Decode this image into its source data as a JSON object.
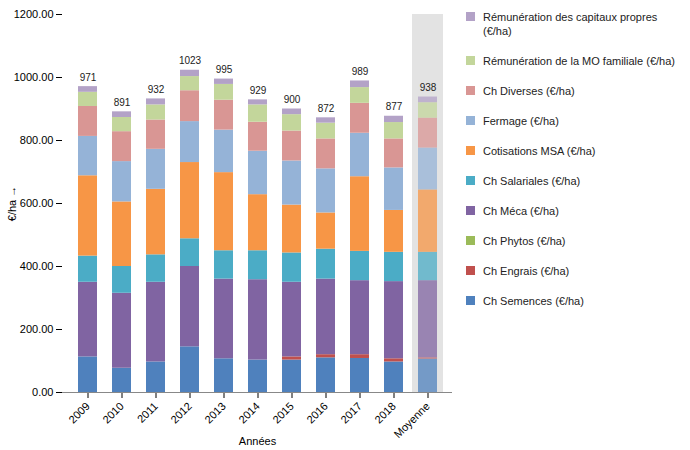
{
  "chart_data": {
    "type": "bar",
    "stacked": true,
    "x_label": "Années",
    "y_label": "€/ha",
    "legend": "right",
    "grid": false,
    "categories": [
      "2009",
      "2010",
      "2011",
      "2012",
      "2013",
      "2014",
      "2015",
      "2016",
      "2017",
      "2018",
      "Moyenne"
    ],
    "ylim": [
      0,
      1200
    ],
    "yticks": [
      {
        "value": 0,
        "label": "0.00"
      },
      {
        "value": 200,
        "label": "200.00"
      },
      {
        "value": 400,
        "label": "400.00"
      },
      {
        "value": 600,
        "label": "600.00"
      },
      {
        "value": 800,
        "label": "800.00"
      },
      {
        "value": 1000,
        "label": "1000.00"
      },
      {
        "value": 1200,
        "label": "1200.00"
      }
    ],
    "totals": [
      971,
      891,
      932,
      1023,
      995,
      929,
      900,
      872,
      989,
      877,
      938
    ],
    "series": [
      {
        "name": "Ch Semences (€/ha)",
        "color": "#4f81bd",
        "values": [
          113,
          77,
          97,
          145,
          107,
          103,
          103,
          110,
          108,
          97,
          106
        ]
      },
      {
        "name": "Ch Engrais (€/ha)",
        "color": "#c0504d",
        "values": [
          0,
          0,
          0,
          0,
          0,
          0,
          10,
          10,
          12,
          10,
          4
        ]
      },
      {
        "name": "Ch Phytos (€/ha)",
        "color": "#9bbb59",
        "values": [
          0,
          0,
          0,
          0,
          0,
          0,
          0,
          0,
          0,
          0,
          0
        ]
      },
      {
        "name": "Ch Méca (€/ha)",
        "color": "#8064a2",
        "values": [
          237,
          238,
          253,
          255,
          253,
          255,
          237,
          240,
          235,
          245,
          245
        ]
      },
      {
        "name": "Ch Salariales (€/ha)",
        "color": "#4bacc6",
        "values": [
          83,
          85,
          87,
          88,
          90,
          92,
          93,
          95,
          93,
          93,
          90
        ]
      },
      {
        "name": "Cotisations MSA (€/ha)",
        "color": "#f79646",
        "values": [
          255,
          205,
          208,
          242,
          248,
          178,
          152,
          115,
          237,
          133,
          198
        ]
      },
      {
        "name": "Fermage (€/ha)",
        "color": "#95b3d7",
        "values": [
          125,
          128,
          127,
          130,
          135,
          138,
          140,
          140,
          138,
          135,
          133
        ]
      },
      {
        "name": "Ch Diverses (€/ha)",
        "color": "#d99694",
        "values": [
          95,
          95,
          93,
          98,
          95,
          92,
          95,
          95,
          95,
          92,
          95
        ]
      },
      {
        "name": "Rémunération de la MO familiale (€/ha)",
        "color": "#c3d69b",
        "values": [
          45,
          45,
          48,
          45,
          50,
          55,
          52,
          50,
          50,
          52,
          49
        ]
      },
      {
        "name": "Rémunération des capitaux propres (€/ha)",
        "color": "#b3a2c7",
        "values": [
          18,
          18,
          19,
          20,
          17,
          16,
          18,
          17,
          21,
          20,
          18
        ]
      }
    ]
  }
}
